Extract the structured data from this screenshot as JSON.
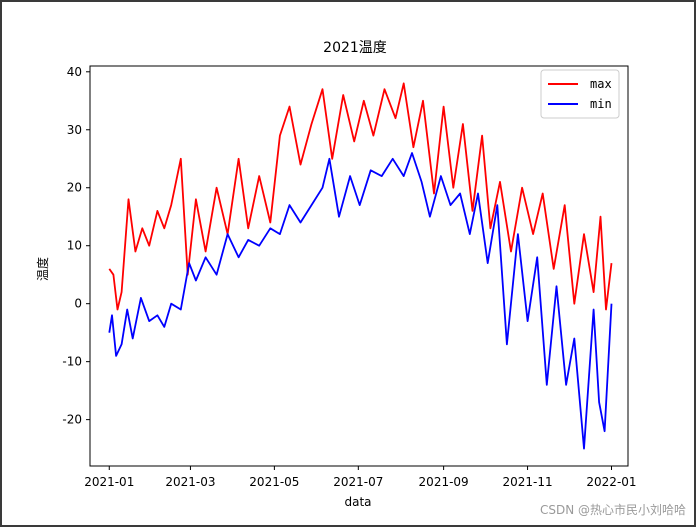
{
  "chart_data": {
    "type": "line",
    "title": "2021温度",
    "xlabel": "data",
    "ylabel": "温度",
    "xlim": [
      "2020-12-18",
      "2022-01-13"
    ],
    "ylim": [
      -28,
      41
    ],
    "x_ticks": [
      "2021-01",
      "2021-03",
      "2021-05",
      "2021-07",
      "2021-09",
      "2021-11",
      "2022-01"
    ],
    "y_ticks": [
      -20,
      -10,
      0,
      10,
      20,
      30,
      40
    ],
    "grid": false,
    "legend_position": "top-right",
    "series": [
      {
        "name": "max",
        "color": "#ff0000",
        "points": [
          [
            "2021-01-01",
            6
          ],
          [
            "2021-01-04",
            5
          ],
          [
            "2021-01-07",
            -1
          ],
          [
            "2021-01-10",
            2
          ],
          [
            "2021-01-15",
            18
          ],
          [
            "2021-01-20",
            9
          ],
          [
            "2021-01-25",
            13
          ],
          [
            "2021-01-30",
            10
          ],
          [
            "2021-02-05",
            16
          ],
          [
            "2021-02-10",
            13
          ],
          [
            "2021-02-15",
            17
          ],
          [
            "2021-02-22",
            25
          ],
          [
            "2021-02-27",
            5
          ],
          [
            "2021-03-05",
            18
          ],
          [
            "2021-03-12",
            9
          ],
          [
            "2021-03-20",
            20
          ],
          [
            "2021-03-28",
            12
          ],
          [
            "2021-04-05",
            25
          ],
          [
            "2021-04-12",
            13
          ],
          [
            "2021-04-20",
            22
          ],
          [
            "2021-04-28",
            14
          ],
          [
            "2021-05-05",
            29
          ],
          [
            "2021-05-12",
            34
          ],
          [
            "2021-05-20",
            24
          ],
          [
            "2021-05-28",
            31
          ],
          [
            "2021-06-05",
            37
          ],
          [
            "2021-06-12",
            25
          ],
          [
            "2021-06-20",
            36
          ],
          [
            "2021-06-28",
            28
          ],
          [
            "2021-07-05",
            35
          ],
          [
            "2021-07-12",
            29
          ],
          [
            "2021-07-20",
            37
          ],
          [
            "2021-07-28",
            32
          ],
          [
            "2021-08-03",
            38
          ],
          [
            "2021-08-10",
            27
          ],
          [
            "2021-08-17",
            35
          ],
          [
            "2021-08-25",
            19
          ],
          [
            "2021-09-01",
            34
          ],
          [
            "2021-09-08",
            20
          ],
          [
            "2021-09-15",
            31
          ],
          [
            "2021-09-22",
            16
          ],
          [
            "2021-09-29",
            29
          ],
          [
            "2021-10-05",
            13
          ],
          [
            "2021-10-12",
            21
          ],
          [
            "2021-10-20",
            9
          ],
          [
            "2021-10-28",
            20
          ],
          [
            "2021-11-05",
            12
          ],
          [
            "2021-11-12",
            19
          ],
          [
            "2021-11-20",
            6
          ],
          [
            "2021-11-28",
            17
          ],
          [
            "2021-12-05",
            0
          ],
          [
            "2021-12-12",
            12
          ],
          [
            "2021-12-19",
            2
          ],
          [
            "2021-12-24",
            15
          ],
          [
            "2021-12-28",
            -1
          ],
          [
            "2022-01-01",
            7
          ]
        ]
      },
      {
        "name": "min",
        "color": "#0000ff",
        "points": [
          [
            "2021-01-01",
            -5
          ],
          [
            "2021-01-03",
            -2
          ],
          [
            "2021-01-06",
            -9
          ],
          [
            "2021-01-10",
            -7
          ],
          [
            "2021-01-14",
            -1
          ],
          [
            "2021-01-18",
            -6
          ],
          [
            "2021-01-24",
            1
          ],
          [
            "2021-01-30",
            -3
          ],
          [
            "2021-02-05",
            -2
          ],
          [
            "2021-02-10",
            -4
          ],
          [
            "2021-02-15",
            0
          ],
          [
            "2021-02-22",
            -1
          ],
          [
            "2021-02-28",
            7
          ],
          [
            "2021-03-05",
            4
          ],
          [
            "2021-03-12",
            8
          ],
          [
            "2021-03-20",
            5
          ],
          [
            "2021-03-28",
            12
          ],
          [
            "2021-04-05",
            8
          ],
          [
            "2021-04-12",
            11
          ],
          [
            "2021-04-20",
            10
          ],
          [
            "2021-04-28",
            13
          ],
          [
            "2021-05-05",
            12
          ],
          [
            "2021-05-12",
            17
          ],
          [
            "2021-05-20",
            14
          ],
          [
            "2021-05-28",
            17
          ],
          [
            "2021-06-05",
            20
          ],
          [
            "2021-06-10",
            25
          ],
          [
            "2021-06-17",
            15
          ],
          [
            "2021-06-25",
            22
          ],
          [
            "2021-07-02",
            17
          ],
          [
            "2021-07-10",
            23
          ],
          [
            "2021-07-18",
            22
          ],
          [
            "2021-07-26",
            25
          ],
          [
            "2021-08-03",
            22
          ],
          [
            "2021-08-09",
            26
          ],
          [
            "2021-08-16",
            21
          ],
          [
            "2021-08-22",
            15
          ],
          [
            "2021-08-30",
            22
          ],
          [
            "2021-09-06",
            17
          ],
          [
            "2021-09-13",
            19
          ],
          [
            "2021-09-20",
            12
          ],
          [
            "2021-09-26",
            19
          ],
          [
            "2021-10-03",
            7
          ],
          [
            "2021-10-10",
            17
          ],
          [
            "2021-10-17",
            -7
          ],
          [
            "2021-10-25",
            12
          ],
          [
            "2021-11-01",
            -3
          ],
          [
            "2021-11-08",
            8
          ],
          [
            "2021-11-15",
            -14
          ],
          [
            "2021-11-22",
            3
          ],
          [
            "2021-11-29",
            -14
          ],
          [
            "2021-12-05",
            -6
          ],
          [
            "2021-12-12",
            -25
          ],
          [
            "2021-12-19",
            -1
          ],
          [
            "2021-12-23",
            -17
          ],
          [
            "2021-12-27",
            -22
          ],
          [
            "2022-01-01",
            0
          ]
        ]
      }
    ]
  },
  "watermark": "CSDN @热心市民小刘哈哈"
}
